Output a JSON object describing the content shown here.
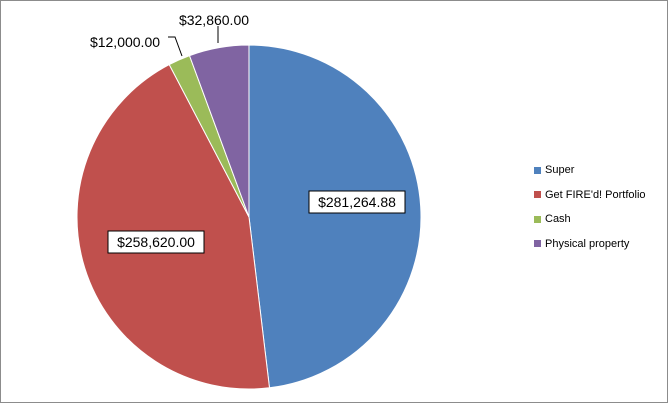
{
  "chart_data": {
    "type": "pie",
    "title": "",
    "slices": [
      {
        "name": "Super",
        "value": 281264.88,
        "label": "$281,264.88",
        "color": "#4f81bd"
      },
      {
        "name": "Get FIRE'd! Portfolio",
        "value": 258620.0,
        "label": "$258,620.00",
        "color": "#c0504d"
      },
      {
        "name": "Cash",
        "value": 12000.0,
        "label": "$12,000.00",
        "color": "#9bbb59"
      },
      {
        "name": "Physical property",
        "value": 32860.0,
        "label": "$32,860.00",
        "color": "#8064a2"
      }
    ],
    "legend_position": "right",
    "start_angle_deg": 0,
    "direction": "clockwise"
  }
}
